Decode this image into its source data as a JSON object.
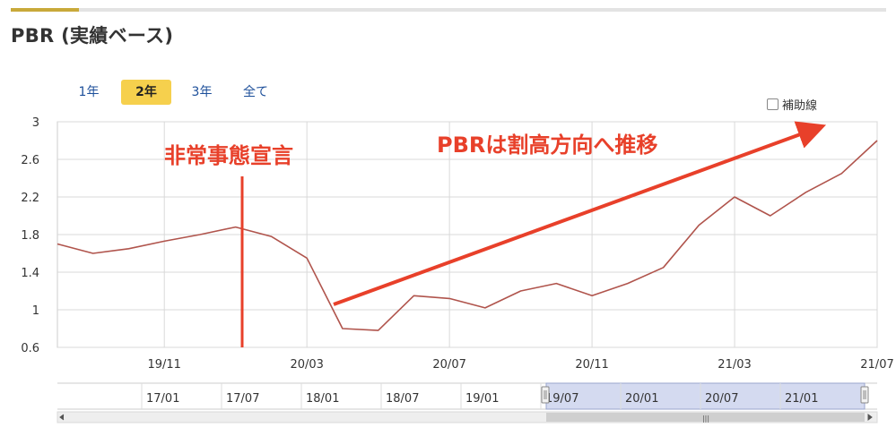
{
  "title": "PBR (実績ベース)",
  "range_buttons": [
    "1年",
    "2年",
    "3年",
    "全て"
  ],
  "active_range": "2年",
  "aux_checkbox": {
    "label": "補助線",
    "checked": false
  },
  "colors": {
    "line": "#b0544c",
    "annotation": "#e8402a",
    "grid": "#d9d9d9",
    "active_button": "#f6d04d",
    "navigator_window": "#d4daf0"
  },
  "chart_data": {
    "type": "line",
    "title": "",
    "xlabel": "",
    "ylabel": "",
    "ylim": [
      0.6,
      3.0
    ],
    "ytick_labels": [
      "3",
      "2.6",
      "2.2",
      "1.8",
      "1.4",
      "1",
      "0.6"
    ],
    "xtick_labels": [
      "19/11",
      "20/03",
      "20/07",
      "20/11",
      "21/03",
      "21/07"
    ],
    "grid": true,
    "series": [
      {
        "name": "",
        "x": [
          "19/08",
          "19/09",
          "19/10",
          "19/11",
          "19/12",
          "20/01",
          "20/02",
          "20/03",
          "20/04",
          "20/05",
          "20/06",
          "20/07",
          "20/08",
          "20/09",
          "20/10",
          "20/11",
          "20/12",
          "21/01",
          "21/02",
          "21/03",
          "21/04",
          "21/05",
          "21/06",
          "21/07"
        ],
        "values": [
          1.7,
          1.6,
          1.65,
          1.73,
          1.8,
          1.88,
          1.78,
          1.55,
          0.8,
          0.78,
          1.15,
          1.12,
          1.02,
          1.2,
          1.28,
          1.15,
          1.28,
          1.45,
          1.9,
          2.2,
          2.0,
          2.25,
          2.45,
          2.8
        ]
      }
    ],
    "annotations": {
      "event_label": "非常事態宣言",
      "trend_label": "PBRは割高方向へ推移"
    },
    "navigator": {
      "tick_labels": [
        "17/01",
        "17/07",
        "18/01",
        "18/07",
        "19/01",
        "19/07",
        "20/01",
        "20/07",
        "21/01"
      ],
      "selected_from": "19/07",
      "selected_to": "21/07"
    }
  }
}
